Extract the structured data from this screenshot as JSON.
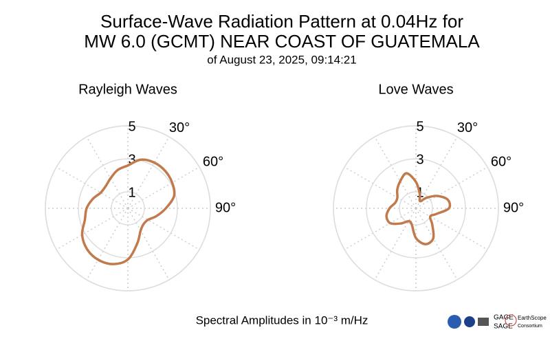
{
  "header": {
    "title": [
      "Surface-Wave Radiation Pattern at 0.04Hz for",
      "MW 6.0 (GCMT) NEAR COAST OF GUATEMALA"
    ],
    "subtitle": "of August 23, 2025, 09:14:21"
  },
  "footer": "Spectral Amplitudes in 10⁻³ m/Hz",
  "logos": [
    "GAGE",
    "SAGE",
    "EarthScope",
    "Consortium"
  ],
  "chart_data": [
    {
      "type": "polar",
      "title": "Rayleigh Waves",
      "color": "#c07a4c",
      "theta": [
        0,
        15,
        30,
        45,
        60,
        75,
        90,
        105,
        120,
        135,
        150,
        165,
        180,
        195,
        210,
        225,
        240,
        255,
        270,
        285,
        300,
        315,
        330,
        345
      ],
      "values": [
        2.6,
        3.05,
        3.2,
        3.2,
        3.1,
        2.9,
        2.3,
        1.8,
        1.4,
        1.35,
        1.55,
        2.2,
        3.1,
        3.5,
        3.6,
        3.5,
        3.2,
        2.7,
        2.5,
        2.2,
        1.9,
        1.9,
        2.1,
        2.4
      ],
      "rlim": [
        0,
        5
      ],
      "rticks": [
        1,
        3,
        5
      ],
      "thetaticks": [
        {
          "value": 30,
          "label": "30°"
        },
        {
          "value": 60,
          "label": "60°"
        },
        {
          "value": 90,
          "label": "90°"
        }
      ],
      "thetagrid": [
        0,
        30,
        60,
        90,
        120,
        150,
        180,
        210,
        240,
        270,
        300,
        330
      ]
    },
    {
      "type": "polar",
      "title": "Love Waves",
      "color": "#c07a4c",
      "theta": [
        0,
        15,
        30,
        45,
        60,
        75,
        90,
        105,
        120,
        135,
        150,
        165,
        180,
        195,
        210,
        225,
        240,
        255,
        270,
        285,
        300,
        315,
        330,
        345
      ],
      "values": [
        1.6,
        0.9,
        0.5,
        0.9,
        1.5,
        2.0,
        2.0,
        1.3,
        1.0,
        1.4,
        2.1,
        2.25,
        1.8,
        1.0,
        0.9,
        1.3,
        1.8,
        1.85,
        1.6,
        1.3,
        1.3,
        1.6,
        1.9,
        2.2
      ],
      "rlim": [
        0,
        5
      ],
      "rticks": [
        1,
        3,
        5
      ],
      "thetaticks": [
        {
          "value": 30,
          "label": "30°"
        },
        {
          "value": 60,
          "label": "60°"
        },
        {
          "value": 90,
          "label": "90°"
        }
      ],
      "thetagrid": [
        0,
        30,
        60,
        90,
        120,
        150,
        180,
        210,
        240,
        270,
        300,
        330
      ]
    }
  ]
}
